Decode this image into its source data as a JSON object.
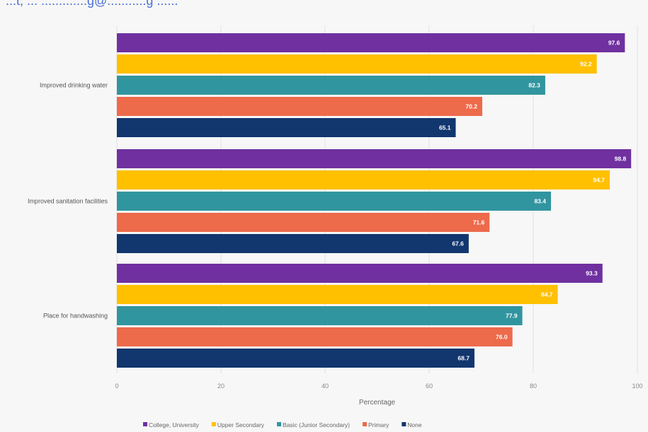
{
  "header_fragment": "...t, ... .............g@...........g ......",
  "chart_data": {
    "type": "bar",
    "orientation": "horizontal",
    "categories": [
      "Improved drinking water",
      "Improved sanitation facilities",
      "Place for handwashing"
    ],
    "series": [
      {
        "name": "College, University",
        "color": "#7030a0",
        "values": [
          97.6,
          98.8,
          93.3
        ]
      },
      {
        "name": "Upper Secondary",
        "color": "#ffc000",
        "values": [
          92.2,
          94.7,
          84.7
        ]
      },
      {
        "name": "Basic (Junior Secondary)",
        "color": "#31959f",
        "values": [
          82.3,
          83.4,
          77.9
        ]
      },
      {
        "name": "Primary",
        "color": "#ed6a4b",
        "values": [
          70.2,
          71.6,
          76.0
        ]
      },
      {
        "name": "None",
        "color": "#12366e",
        "values": [
          65.1,
          67.6,
          68.7
        ]
      }
    ],
    "value_labels": [
      [
        "97.6",
        "98.8",
        "93.3"
      ],
      [
        "92.2",
        "94.7",
        "84.7"
      ],
      [
        "82.3",
        "83.4",
        "77.9"
      ],
      [
        "70.2",
        "71.6",
        "76.0"
      ],
      [
        "65.1",
        "67.6",
        "68.7"
      ]
    ],
    "xlabel": "Percentage",
    "ylabel": "",
    "xlim": [
      0,
      100
    ],
    "x_ticks": [
      "0",
      "20",
      "40",
      "60",
      "80",
      "100"
    ],
    "grid": true,
    "legend_position": "bottom"
  }
}
